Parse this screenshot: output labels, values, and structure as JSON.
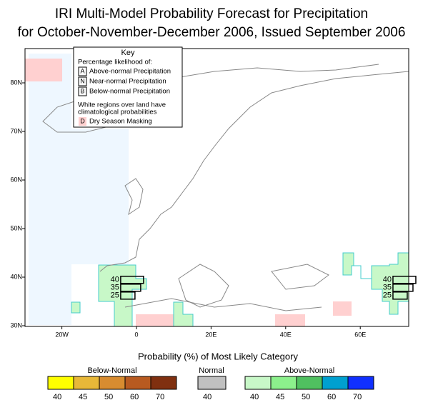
{
  "header": {
    "title": [
      "IRI Multi-Model Probability Forecast for Precipitation",
      "for October-November-December 2006, Issued September 2006"
    ]
  },
  "map": {
    "lat_ticks": [
      {
        "value": 30,
        "label": "30N"
      },
      {
        "value": 40,
        "label": "40N"
      },
      {
        "value": 50,
        "label": "50N"
      },
      {
        "value": 60,
        "label": "60N"
      },
      {
        "value": 70,
        "label": "70N"
      },
      {
        "value": 80,
        "label": "80N"
      }
    ],
    "lon_ticks": [
      {
        "value": -20,
        "label": "20W"
      },
      {
        "value": 0,
        "label": "0"
      },
      {
        "value": 20,
        "label": "20E"
      },
      {
        "value": 40,
        "label": "40E"
      },
      {
        "value": 60,
        "label": "60E"
      }
    ],
    "regions": [
      {
        "lon": -5,
        "lat": 39,
        "above": 40,
        "normal": 35,
        "below": 25
      },
      {
        "lon": 68,
        "lat": 39,
        "above": 40,
        "normal": 35,
        "below": 25
      }
    ]
  },
  "key": {
    "title": "Key",
    "subtitle": "Percentage likelihood of:",
    "items": [
      {
        "letter": "A",
        "text": "Above-normal Precipitation"
      },
      {
        "letter": "N",
        "text": "Near-normal Precipitation"
      },
      {
        "letter": "B",
        "text": "Below-normal Precipitation"
      }
    ],
    "note": [
      "White regions over land have",
      "climatological probabilities"
    ],
    "dry": {
      "letter": "D",
      "text": "Dry Season Masking",
      "color": "#ffd0d0"
    }
  },
  "legend": {
    "title": "Probability (%) of Most Likely Category",
    "groups": [
      {
        "name": "Below-Normal",
        "colors": [
          "#ffff00",
          "#e8b838",
          "#d88c30",
          "#b85a20",
          "#803010"
        ],
        "ticks": [
          40,
          45,
          50,
          60,
          70
        ]
      },
      {
        "name": "Normal",
        "colors": [
          "#c0c0c0"
        ],
        "ticks": [
          40
        ]
      },
      {
        "name": "Above-Normal",
        "colors": [
          "#c8f8c8",
          "#8cf08c",
          "#50c060",
          "#00a0d0",
          "#1030ff"
        ],
        "ticks": [
          40,
          45,
          50,
          60,
          70
        ]
      }
    ]
  }
}
